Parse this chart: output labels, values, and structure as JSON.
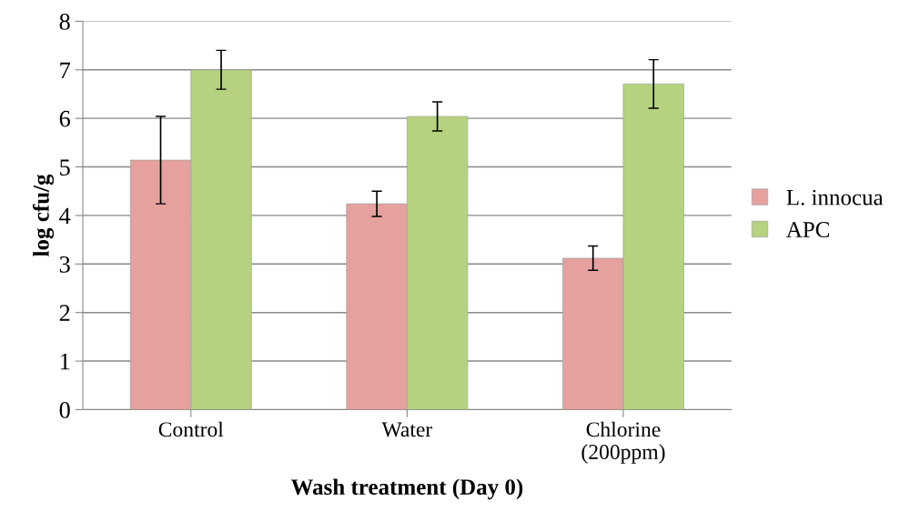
{
  "chart_data": {
    "type": "bar",
    "xlabel": "Wash treatment (Day 0)",
    "ylabel": "log cfu/g",
    "categories": [
      "Control",
      "Water",
      "Chlorine\n(200ppm)"
    ],
    "series": [
      {
        "name": "L. innocua",
        "color": "#e6a09e",
        "values": [
          5.14,
          4.24,
          3.12
        ],
        "errors": [
          0.9,
          0.26,
          0.25
        ]
      },
      {
        "name": "APC",
        "color": "#b5d27e",
        "values": [
          7.0,
          6.04,
          6.71
        ],
        "errors": [
          0.4,
          0.3,
          0.5
        ]
      }
    ],
    "ylim": [
      0,
      8
    ],
    "yticks": [
      0,
      1,
      2,
      3,
      4,
      5,
      6,
      7,
      8
    ],
    "grid": "y",
    "legend": "right"
  }
}
